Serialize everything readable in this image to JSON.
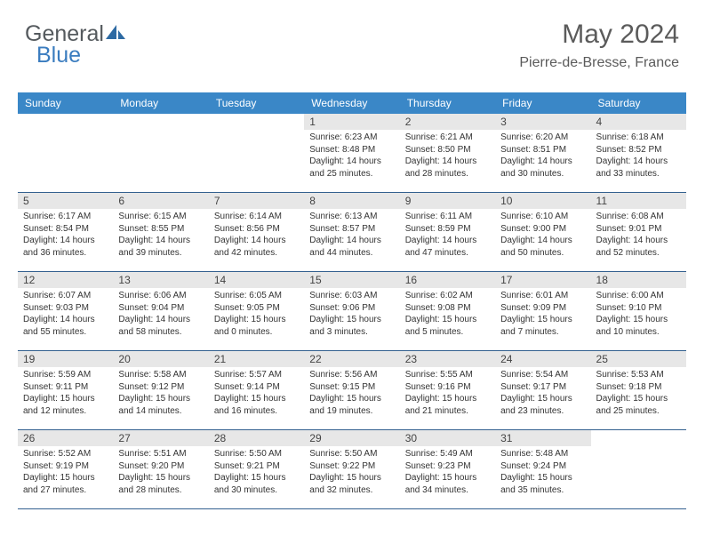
{
  "logo": {
    "part1": "General",
    "part2": "Blue"
  },
  "header": {
    "month_title": "May 2024",
    "location": "Pierre-de-Bresse, France"
  },
  "colors": {
    "header_band": "#3a87c7",
    "week_divider": "#33608f",
    "daynum_bg": "#e7e7e7",
    "logo_gray": "#555a5e",
    "logo_blue": "#3a7cbf"
  },
  "days_of_week": [
    "Sunday",
    "Monday",
    "Tuesday",
    "Wednesday",
    "Thursday",
    "Friday",
    "Saturday"
  ],
  "weeks": [
    [
      {
        "empty": true
      },
      {
        "empty": true
      },
      {
        "empty": true
      },
      {
        "n": "1",
        "sunrise": "Sunrise: 6:23 AM",
        "sunset": "Sunset: 8:48 PM",
        "dl1": "Daylight: 14 hours",
        "dl2": "and 25 minutes."
      },
      {
        "n": "2",
        "sunrise": "Sunrise: 6:21 AM",
        "sunset": "Sunset: 8:50 PM",
        "dl1": "Daylight: 14 hours",
        "dl2": "and 28 minutes."
      },
      {
        "n": "3",
        "sunrise": "Sunrise: 6:20 AM",
        "sunset": "Sunset: 8:51 PM",
        "dl1": "Daylight: 14 hours",
        "dl2": "and 30 minutes."
      },
      {
        "n": "4",
        "sunrise": "Sunrise: 6:18 AM",
        "sunset": "Sunset: 8:52 PM",
        "dl1": "Daylight: 14 hours",
        "dl2": "and 33 minutes."
      }
    ],
    [
      {
        "n": "5",
        "sunrise": "Sunrise: 6:17 AM",
        "sunset": "Sunset: 8:54 PM",
        "dl1": "Daylight: 14 hours",
        "dl2": "and 36 minutes."
      },
      {
        "n": "6",
        "sunrise": "Sunrise: 6:15 AM",
        "sunset": "Sunset: 8:55 PM",
        "dl1": "Daylight: 14 hours",
        "dl2": "and 39 minutes."
      },
      {
        "n": "7",
        "sunrise": "Sunrise: 6:14 AM",
        "sunset": "Sunset: 8:56 PM",
        "dl1": "Daylight: 14 hours",
        "dl2": "and 42 minutes."
      },
      {
        "n": "8",
        "sunrise": "Sunrise: 6:13 AM",
        "sunset": "Sunset: 8:57 PM",
        "dl1": "Daylight: 14 hours",
        "dl2": "and 44 minutes."
      },
      {
        "n": "9",
        "sunrise": "Sunrise: 6:11 AM",
        "sunset": "Sunset: 8:59 PM",
        "dl1": "Daylight: 14 hours",
        "dl2": "and 47 minutes."
      },
      {
        "n": "10",
        "sunrise": "Sunrise: 6:10 AM",
        "sunset": "Sunset: 9:00 PM",
        "dl1": "Daylight: 14 hours",
        "dl2": "and 50 minutes."
      },
      {
        "n": "11",
        "sunrise": "Sunrise: 6:08 AM",
        "sunset": "Sunset: 9:01 PM",
        "dl1": "Daylight: 14 hours",
        "dl2": "and 52 minutes."
      }
    ],
    [
      {
        "n": "12",
        "sunrise": "Sunrise: 6:07 AM",
        "sunset": "Sunset: 9:03 PM",
        "dl1": "Daylight: 14 hours",
        "dl2": "and 55 minutes."
      },
      {
        "n": "13",
        "sunrise": "Sunrise: 6:06 AM",
        "sunset": "Sunset: 9:04 PM",
        "dl1": "Daylight: 14 hours",
        "dl2": "and 58 minutes."
      },
      {
        "n": "14",
        "sunrise": "Sunrise: 6:05 AM",
        "sunset": "Sunset: 9:05 PM",
        "dl1": "Daylight: 15 hours",
        "dl2": "and 0 minutes."
      },
      {
        "n": "15",
        "sunrise": "Sunrise: 6:03 AM",
        "sunset": "Sunset: 9:06 PM",
        "dl1": "Daylight: 15 hours",
        "dl2": "and 3 minutes."
      },
      {
        "n": "16",
        "sunrise": "Sunrise: 6:02 AM",
        "sunset": "Sunset: 9:08 PM",
        "dl1": "Daylight: 15 hours",
        "dl2": "and 5 minutes."
      },
      {
        "n": "17",
        "sunrise": "Sunrise: 6:01 AM",
        "sunset": "Sunset: 9:09 PM",
        "dl1": "Daylight: 15 hours",
        "dl2": "and 7 minutes."
      },
      {
        "n": "18",
        "sunrise": "Sunrise: 6:00 AM",
        "sunset": "Sunset: 9:10 PM",
        "dl1": "Daylight: 15 hours",
        "dl2": "and 10 minutes."
      }
    ],
    [
      {
        "n": "19",
        "sunrise": "Sunrise: 5:59 AM",
        "sunset": "Sunset: 9:11 PM",
        "dl1": "Daylight: 15 hours",
        "dl2": "and 12 minutes."
      },
      {
        "n": "20",
        "sunrise": "Sunrise: 5:58 AM",
        "sunset": "Sunset: 9:12 PM",
        "dl1": "Daylight: 15 hours",
        "dl2": "and 14 minutes."
      },
      {
        "n": "21",
        "sunrise": "Sunrise: 5:57 AM",
        "sunset": "Sunset: 9:14 PM",
        "dl1": "Daylight: 15 hours",
        "dl2": "and 16 minutes."
      },
      {
        "n": "22",
        "sunrise": "Sunrise: 5:56 AM",
        "sunset": "Sunset: 9:15 PM",
        "dl1": "Daylight: 15 hours",
        "dl2": "and 19 minutes."
      },
      {
        "n": "23",
        "sunrise": "Sunrise: 5:55 AM",
        "sunset": "Sunset: 9:16 PM",
        "dl1": "Daylight: 15 hours",
        "dl2": "and 21 minutes."
      },
      {
        "n": "24",
        "sunrise": "Sunrise: 5:54 AM",
        "sunset": "Sunset: 9:17 PM",
        "dl1": "Daylight: 15 hours",
        "dl2": "and 23 minutes."
      },
      {
        "n": "25",
        "sunrise": "Sunrise: 5:53 AM",
        "sunset": "Sunset: 9:18 PM",
        "dl1": "Daylight: 15 hours",
        "dl2": "and 25 minutes."
      }
    ],
    [
      {
        "n": "26",
        "sunrise": "Sunrise: 5:52 AM",
        "sunset": "Sunset: 9:19 PM",
        "dl1": "Daylight: 15 hours",
        "dl2": "and 27 minutes."
      },
      {
        "n": "27",
        "sunrise": "Sunrise: 5:51 AM",
        "sunset": "Sunset: 9:20 PM",
        "dl1": "Daylight: 15 hours",
        "dl2": "and 28 minutes."
      },
      {
        "n": "28",
        "sunrise": "Sunrise: 5:50 AM",
        "sunset": "Sunset: 9:21 PM",
        "dl1": "Daylight: 15 hours",
        "dl2": "and 30 minutes."
      },
      {
        "n": "29",
        "sunrise": "Sunrise: 5:50 AM",
        "sunset": "Sunset: 9:22 PM",
        "dl1": "Daylight: 15 hours",
        "dl2": "and 32 minutes."
      },
      {
        "n": "30",
        "sunrise": "Sunrise: 5:49 AM",
        "sunset": "Sunset: 9:23 PM",
        "dl1": "Daylight: 15 hours",
        "dl2": "and 34 minutes."
      },
      {
        "n": "31",
        "sunrise": "Sunrise: 5:48 AM",
        "sunset": "Sunset: 9:24 PM",
        "dl1": "Daylight: 15 hours",
        "dl2": "and 35 minutes."
      },
      {
        "empty": true
      }
    ]
  ]
}
